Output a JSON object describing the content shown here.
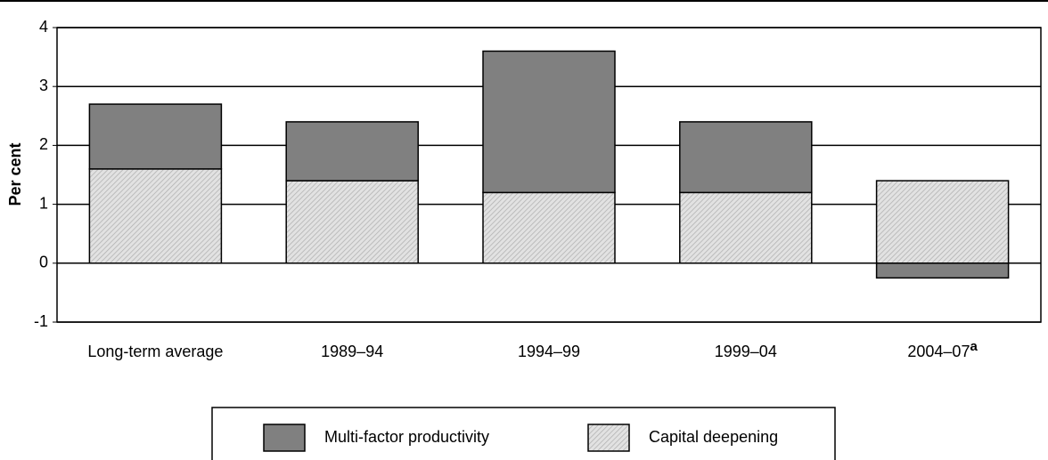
{
  "chart_data": {
    "type": "stacked_bar",
    "ylabel": "Per cent",
    "categories": [
      "Long-term average",
      "1989–94",
      "1994–99",
      "1999–04",
      "2004–07"
    ],
    "footnote_marker": "a",
    "series": [
      {
        "name": "Capital deepening",
        "color": "#d4d4d4",
        "values": [
          1.6,
          1.4,
          1.2,
          1.2,
          1.4
        ]
      },
      {
        "name": "Multi-factor productivity",
        "color": "#808080",
        "values": [
          1.1,
          1.0,
          2.4,
          1.2,
          -0.25
        ]
      }
    ],
    "ylim": [
      -1,
      4
    ],
    "yticks": [
      -1,
      0,
      1,
      2,
      3,
      4
    ],
    "grid": true
  }
}
